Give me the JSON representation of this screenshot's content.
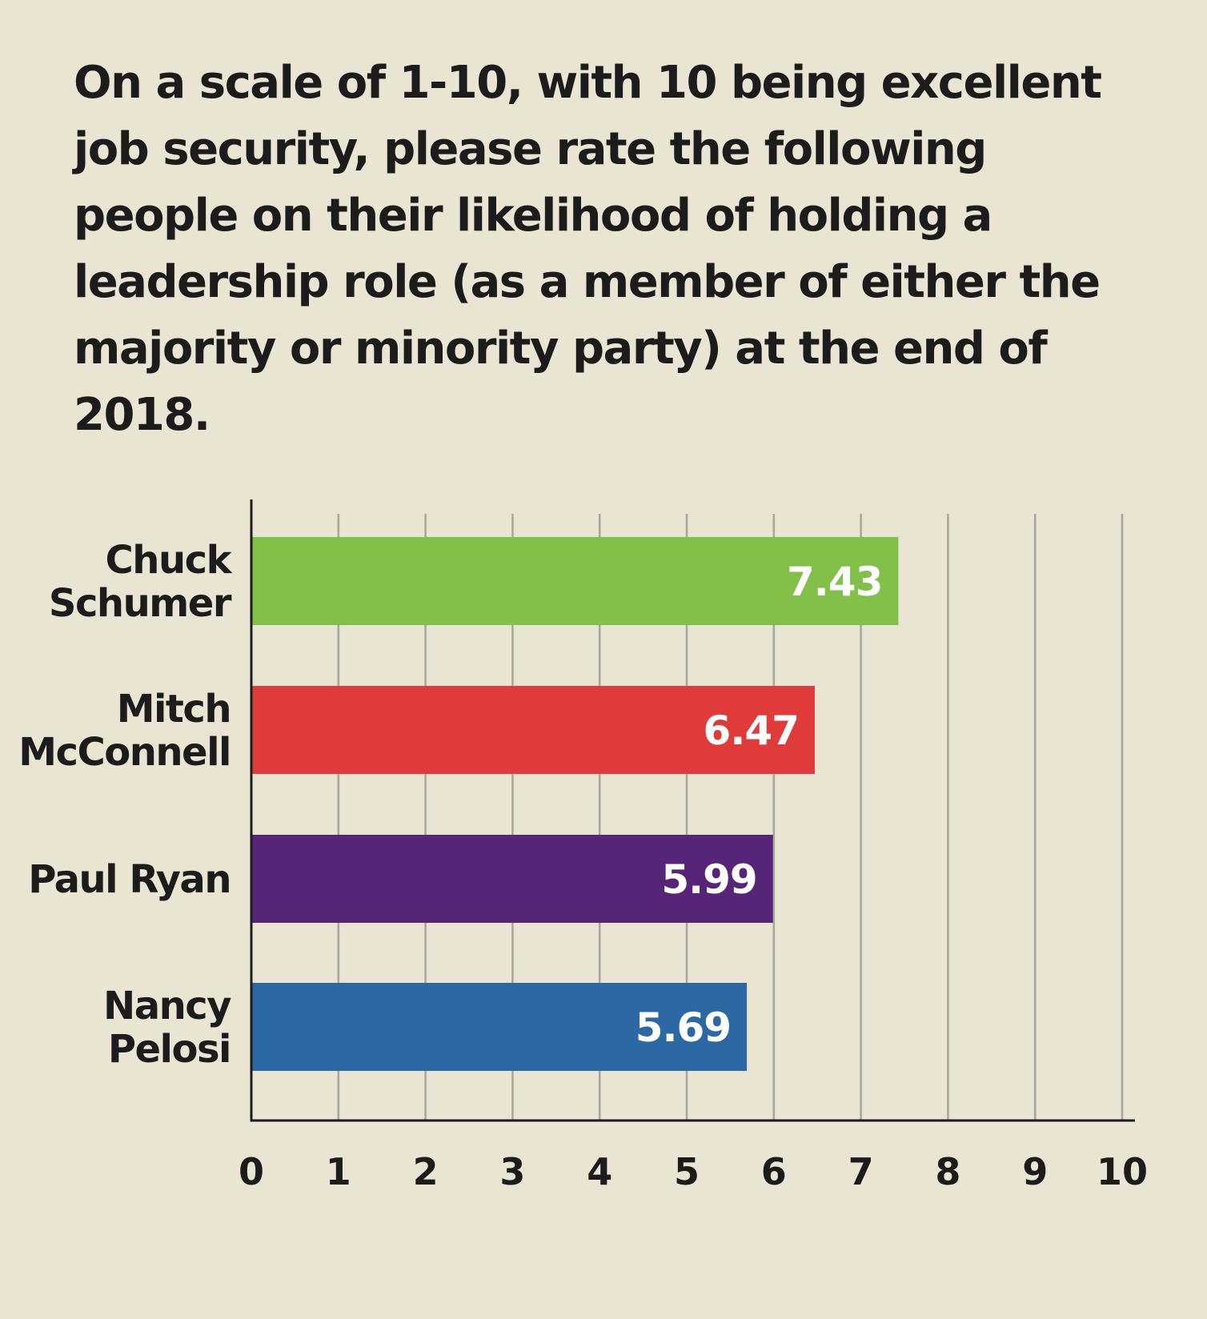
{
  "chart_data": {
    "type": "bar",
    "orientation": "horizontal",
    "title": "On a scale of 1-10, with 10 being excellent job security, please rate the following people on their likelihood of holding a leadership role (as a member of either the majority or minority party) at the end of 2018.",
    "categories": [
      "Chuck Schumer",
      "Mitch McConnell",
      "Paul Ryan",
      "Nancy Pelosi"
    ],
    "category_label_lines": [
      [
        "Chuck",
        "Schumer"
      ],
      [
        "Mitch",
        "McConnell"
      ],
      [
        "Paul Ryan"
      ],
      [
        "Nancy",
        "Pelosi"
      ]
    ],
    "values": [
      7.43,
      6.47,
      5.99,
      5.69
    ],
    "value_labels": [
      "7.43",
      "6.47",
      "5.99",
      "5.69"
    ],
    "colors": [
      "#82c04a",
      "#df3b3b",
      "#562577",
      "#2c69a4"
    ],
    "xlim": [
      0,
      10
    ],
    "x_ticks": [
      0,
      1,
      2,
      3,
      4,
      5,
      6,
      7,
      8,
      9,
      10
    ],
    "x_tick_labels": [
      "0",
      "1",
      "2",
      "3",
      "4",
      "5",
      "6",
      "7",
      "8",
      "9",
      "10"
    ],
    "grid": true,
    "xlabel": "",
    "ylabel": ""
  },
  "colors": {
    "background": "#e9e5d2",
    "text": "#1c1c1c",
    "grid": "#a8a59a",
    "axis": "#1c1c1c"
  }
}
